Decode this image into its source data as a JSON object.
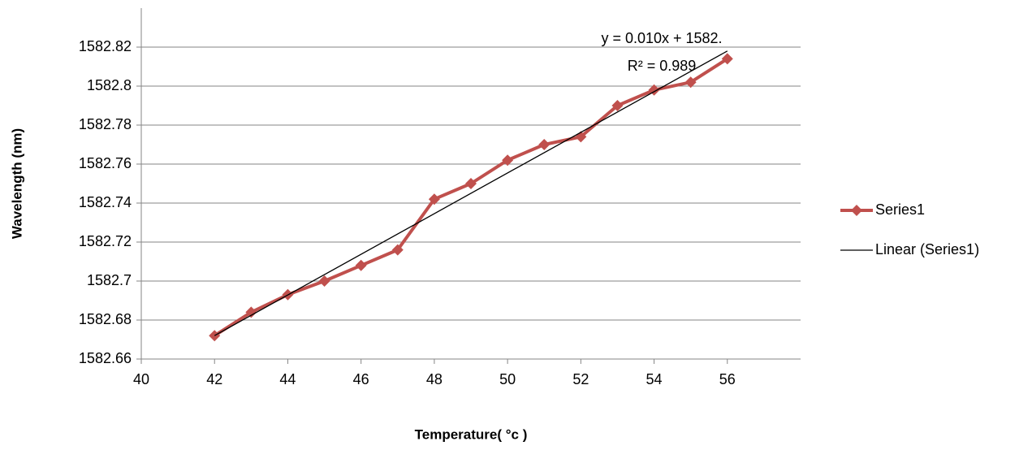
{
  "chart_data": {
    "type": "line",
    "x": [
      42,
      43,
      44,
      45,
      46,
      47,
      48,
      49,
      50,
      51,
      52,
      53,
      54,
      55,
      56
    ],
    "series": [
      {
        "name": "Series1",
        "color": "#c0504d",
        "values": [
          1582.672,
          1582.684,
          1582.693,
          1582.7,
          1582.708,
          1582.716,
          1582.742,
          1582.75,
          1582.762,
          1582.77,
          1582.774,
          1582.79,
          1582.798,
          1582.802,
          1582.814
        ]
      },
      {
        "name": "Linear (Series1)",
        "color": "#000000",
        "x": [
          42,
          56
        ],
        "values": [
          1582.672,
          1582.818
        ]
      }
    ],
    "xlabel": "Temperature( °c )",
    "ylabel": "Wavelength (nm)",
    "annotations": [
      "y = 0.010x + 1582.",
      "R² = 0.989"
    ],
    "xlim": [
      40,
      58
    ],
    "xticks": [
      40,
      42,
      44,
      46,
      48,
      50,
      52,
      54,
      56
    ],
    "ylim": [
      1582.66,
      1582.84
    ],
    "yticks": [
      1582.66,
      1582.68,
      1582.7,
      1582.72,
      1582.74,
      1582.76,
      1582.78,
      1582.8,
      1582.82
    ],
    "grid": true,
    "legend": "right"
  }
}
